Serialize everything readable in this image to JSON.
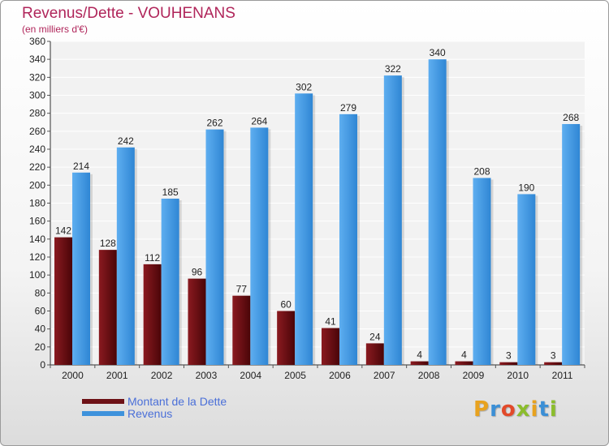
{
  "chart_data": {
    "type": "bar",
    "title": "Revenus/Dette - VOUHENANS",
    "subtitle": "(en milliers d'€)",
    "categories": [
      "2000",
      "2001",
      "2002",
      "2003",
      "2004",
      "2005",
      "2006",
      "2007",
      "2008",
      "2009",
      "2010",
      "2011"
    ],
    "series": [
      {
        "name": "Montant de la Dette",
        "color": "#6d1116",
        "values": [
          142,
          128,
          112,
          96,
          77,
          60,
          41,
          24,
          4,
          4,
          3,
          3
        ]
      },
      {
        "name": "Revenus",
        "color": "#3e92dc",
        "values": [
          214,
          242,
          185,
          262,
          264,
          302,
          279,
          322,
          340,
          208,
          190,
          268
        ]
      }
    ],
    "ylim": [
      0,
      360
    ],
    "yticks": [
      0,
      20,
      40,
      60,
      80,
      100,
      120,
      140,
      160,
      180,
      200,
      220,
      240,
      260,
      280,
      300,
      320,
      340,
      360
    ],
    "grid": true,
    "legend": "bottom-left"
  },
  "logo": {
    "letters": [
      "P",
      "r",
      "o",
      "x",
      "i",
      "t",
      "i"
    ],
    "colors": [
      "#e8a21e",
      "#3b8fd6",
      "#e24a2a",
      "#8bbd2c",
      "#e8a21e",
      "#3b8fd6",
      "#8bbd2c"
    ]
  }
}
